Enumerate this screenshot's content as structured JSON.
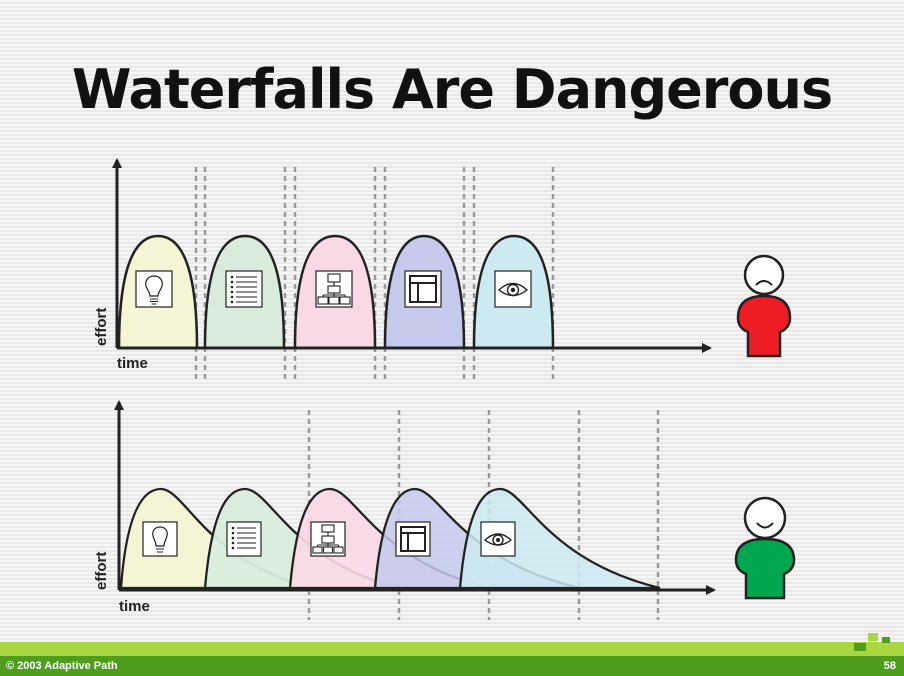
{
  "slide": {
    "title": "Waterfalls Are Dangerous",
    "footer_copyright": "© 2003 Adaptive Path",
    "page_number": "58"
  },
  "diagrams": [
    {
      "name": "waterfall",
      "y_axis_label": "effort",
      "x_axis_label": "time",
      "phases": [
        "idea",
        "requirements",
        "structure",
        "layout",
        "visual"
      ],
      "person_mood": "sad",
      "person_color": "#ee1c24"
    },
    {
      "name": "overlapping",
      "y_axis_label": "effort",
      "x_axis_label": "time",
      "phases": [
        "idea",
        "requirements",
        "structure",
        "layout",
        "visual"
      ],
      "person_mood": "happy",
      "person_color": "#00a650"
    }
  ],
  "phase_colors": [
    "#f4f5d4",
    "#d9ecdc",
    "#f9d9e6",
    "#c6c9ec",
    "#cdeaf1"
  ],
  "phase_icons": [
    "lightbulb-icon",
    "list-icon",
    "org-chart-icon",
    "layout-icon",
    "eye-icon"
  ]
}
